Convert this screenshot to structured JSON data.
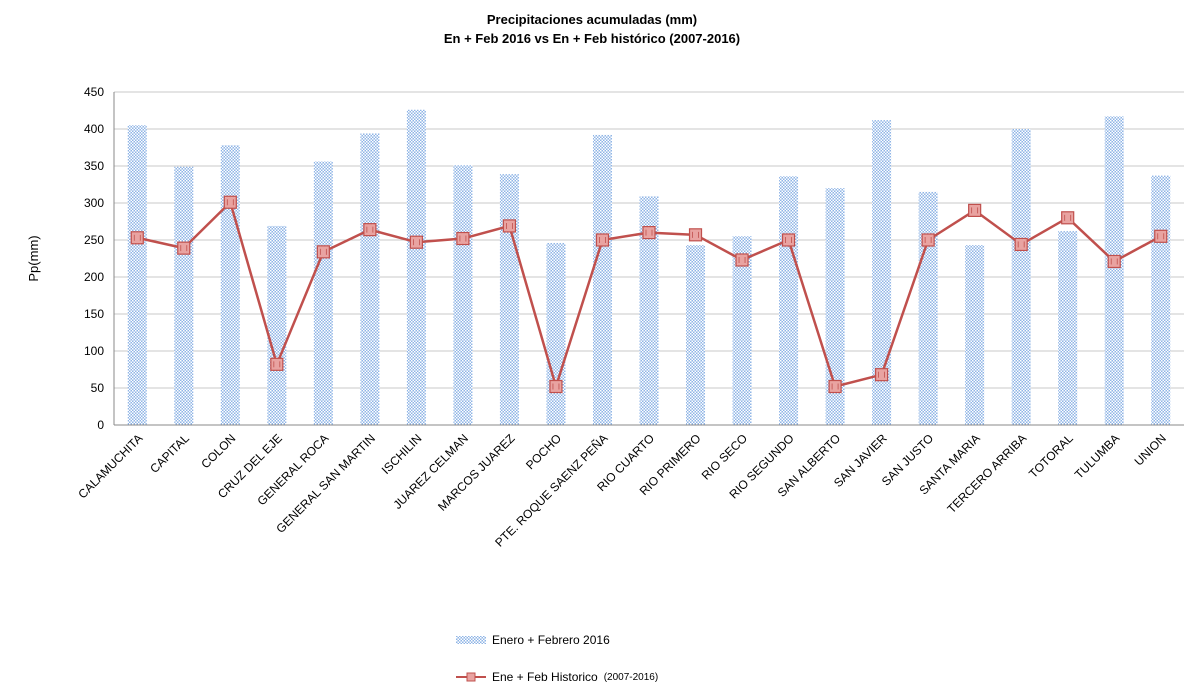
{
  "chart_data": {
    "type": "bar",
    "title": "Precipitaciones acumuladas (mm)",
    "subtitle": "En + Feb 2016 vs En + Feb histórico (2007-2016)",
    "ylabel": "Pp(mm)",
    "xlabel": "",
    "ylim": [
      0,
      450
    ],
    "yticks": [
      0,
      50,
      100,
      150,
      200,
      250,
      300,
      350,
      400,
      450
    ],
    "grid": true,
    "legend_position": "bottom",
    "categories": [
      "CALAMUCHITA",
      "CAPITAL",
      "COLON",
      "CRUZ DEL EJE",
      "GENERAL ROCA",
      "GENERAL SAN MARTIN",
      "ISCHILIN",
      "JUAREZ CELMAN",
      "MARCOS JUAREZ",
      "POCHO",
      "PTE. ROQUE SAENZ PEÑA",
      "RIO CUARTO",
      "RIO PRIMERO",
      "RIO SECO",
      "RIO SEGUNDO",
      "SAN ALBERTO",
      "SAN JAVIER",
      "SAN JUSTO",
      "SANTA MARIA",
      "TERCERO ARRIBA",
      "TOTORAL",
      "TULUMBA",
      "UNION"
    ],
    "series": [
      {
        "name": "Enero + Febrero 2016",
        "type": "bar",
        "color": "#5b8fd1",
        "values": [
          405,
          349,
          378,
          269,
          356,
          394,
          426,
          351,
          339,
          246,
          392,
          309,
          243,
          255,
          336,
          320,
          412,
          315,
          243,
          400,
          262,
          417,
          337
        ]
      },
      {
        "name": "Ene + Feb Historico",
        "name_suffix": "(2007-2016)",
        "type": "line",
        "color": "#c0504d",
        "values": [
          253,
          239,
          301,
          82,
          234,
          264,
          247,
          252,
          269,
          52,
          250,
          260,
          257,
          223,
          250,
          52,
          68,
          250,
          290,
          244,
          280,
          221,
          255
        ]
      }
    ]
  }
}
